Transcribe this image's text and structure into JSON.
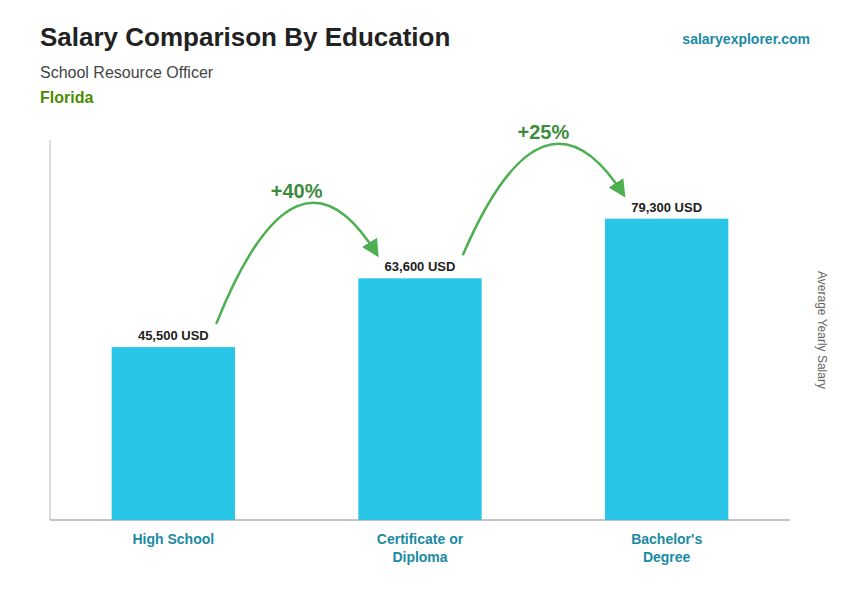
{
  "chart_data": {
    "type": "bar",
    "title": "Salary Comparison By Education",
    "subtitle": "School Resource Officer",
    "location": "Florida",
    "source": "salaryexplorer.com",
    "ylabel": "Average Yearly Salary",
    "categories": [
      "High School",
      "Certificate or\nDiploma",
      "Bachelor's\nDegree"
    ],
    "values": [
      45500,
      63600,
      79300
    ],
    "value_labels": [
      "45,500 USD",
      "63,600 USD",
      "79,300 USD"
    ],
    "data_labels": true,
    "annotations": [
      "+40%",
      "+25%"
    ],
    "color": "#29c5e6",
    "ylim": [
      0,
      100000
    ],
    "tick_labels": "x",
    "grid": false
  }
}
